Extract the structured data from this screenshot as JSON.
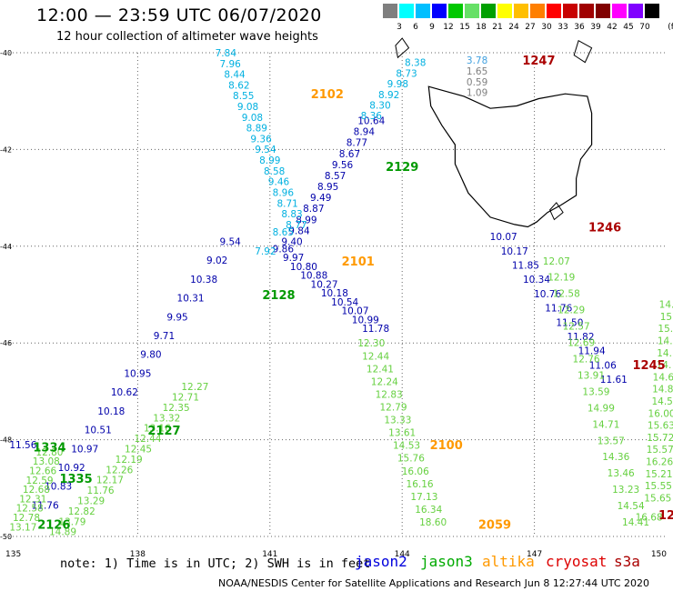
{
  "header": {
    "title": "12:00 — 23:59 UTC 06/07/2020",
    "subtitle": "12 hour collection of altimeter wave heights"
  },
  "legend": {
    "unit_label": "(ft)",
    "colors": [
      "#7f7f7f",
      "#00ffff",
      "#00bfff",
      "#0000ff",
      "#00c800",
      "#66e066",
      "#00a000",
      "#ffff00",
      "#ffbf00",
      "#ff7f00",
      "#ff0000",
      "#c80000",
      "#a00000",
      "#800000",
      "#ff00ff",
      "#8000ff",
      "#000000"
    ],
    "ticks": [
      "3",
      "6",
      "9",
      "12",
      "15",
      "18",
      "21",
      "24",
      "27",
      "30",
      "33",
      "36",
      "39",
      "42",
      "45",
      "70"
    ]
  },
  "map": {
    "lat_labels": [
      "-40",
      "-42",
      "-44",
      "-46",
      "-48",
      "-50"
    ],
    "lon_labels": [
      "135",
      "138",
      "141",
      "144",
      "147",
      "150"
    ],
    "lat_range": [
      -50,
      -40
    ],
    "lon_range": [
      135,
      150
    ]
  },
  "tracks": [
    {
      "id": "j2-a",
      "color": "#0000aa",
      "lon0": 140.1,
      "lat0": -43.9,
      "lon1": 135.9,
      "lat1": -49.35,
      "values": [
        "9.54",
        "9.02",
        "10.38",
        "10.31",
        "9.95",
        "9.71",
        "9.80",
        "10.95",
        "10.62",
        "10.18",
        "10.51",
        "10.97",
        "10.92",
        "10.83",
        "11.76"
      ]
    },
    {
      "id": "j2-b",
      "color": "#0000aa",
      "lon0": 141.3,
      "lat0": -44.05,
      "lon1": 143.4,
      "lat1": -45.7,
      "values": [
        "9.86",
        "9.97",
        "10.80",
        "10.88",
        "10.27",
        "10.18",
        "10.54",
        "10.07",
        "10.99",
        "11.78"
      ]
    },
    {
      "id": "j2-c",
      "color": "#0000aa",
      "lon0": 143.3,
      "lat0": -41.4,
      "lon1": 141.5,
      "lat1": -43.9,
      "values": [
        "10.64",
        "8.94",
        "8.77",
        "8.67",
        "9.56",
        "8.57",
        "8.95",
        "9.49",
        "8.87",
        "8.99",
        "9.84",
        "9.40"
      ]
    },
    {
      "id": "j2-d",
      "color": "#0000aa",
      "lon0": 146.3,
      "lat0": -43.8,
      "lon1": 148.8,
      "lat1": -46.75,
      "values": [
        "10.07",
        "10.17",
        "11.85",
        "10.34",
        "10.76",
        "11.76",
        "11.50",
        "11.82",
        "11.94",
        "11.06",
        "11.61"
      ]
    },
    {
      "id": "al-a",
      "color": "#00b0e0",
      "lon0": 140.0,
      "lat0": -40.0,
      "lon1": 141.6,
      "lat1": -43.55,
      "values": [
        "7.84",
        "7.96",
        "8.44",
        "8.62",
        "8.55",
        "9.08",
        "9.08",
        "8.89",
        "9.36",
        "9.54",
        "8.99",
        "8.58",
        "9.46",
        "8.96",
        "8.71",
        "8.83",
        "8.77"
      ]
    },
    {
      "id": "al-b",
      "color": "#00b0e0",
      "lon0": 144.3,
      "lat0": -40.2,
      "lon1": 143.3,
      "lat1": -41.3,
      "values": [
        "8.38",
        "8.73",
        "9.98",
        "8.92",
        "8.30",
        "8.36"
      ]
    },
    {
      "id": "al-c",
      "color": "#00b0e0",
      "lon0": 141.3,
      "lat0": -43.7,
      "lon1": 140.9,
      "lat1": -44.1,
      "values": [
        "8.65",
        "7.92"
      ]
    },
    {
      "id": "j3-a",
      "color": "#66d040",
      "lon0": 139.3,
      "lat0": -46.9,
      "lon1": 136.3,
      "lat1": -49.9,
      "values": [
        "12.27",
        "12.71",
        "12.35",
        "13.32",
        "13.16",
        "12.44",
        "12.45",
        "12.19",
        "12.26",
        "12.17",
        "11.76",
        "13.29",
        "12.82",
        "13.79",
        "14.89"
      ]
    },
    {
      "id": "j3-b",
      "color": "#66d040",
      "lon0": 143.3,
      "lat0": -46.0,
      "lon1": 144.7,
      "lat1": -49.7,
      "values": [
        "12.30",
        "12.44",
        "12.41",
        "12.24",
        "12.83",
        "12.79",
        "13.33",
        "13.61",
        "14.53",
        "15.76",
        "16.06",
        "16.16",
        "17.13",
        "16.34",
        "18.60"
      ]
    },
    {
      "id": "j3-c",
      "color": "#66d040",
      "lon0": 136.0,
      "lat0": -48.25,
      "lon1": 135.4,
      "lat1": -49.8,
      "values": [
        "12.80",
        "13.08",
        "12.66",
        "12.59",
        "12.68",
        "12.31",
        "12.58",
        "12.78",
        "13.17"
      ]
    },
    {
      "id": "j3-d",
      "color": "#66d040",
      "lon0": 147.5,
      "lat0": -44.3,
      "lon1": 149.3,
      "lat1": -49.7,
      "values": [
        "12.07",
        "12.19",
        "12.58",
        "12.29",
        "12.57",
        "12.69",
        "12.76",
        "13.91",
        "13.59",
        "14.99",
        "14.71",
        "13.57",
        "14.36",
        "13.46",
        "13.23",
        "14.54",
        "14.41"
      ]
    },
    {
      "id": "j3-e",
      "color": "#66d040",
      "lon0": 150.0,
      "lat0": -45.2,
      "lon1": 149.8,
      "lat1": -49.2,
      "values": [
        "14.",
        "15",
        "15.",
        "14.",
        "14.",
        "14.",
        "14.6",
        "14.8",
        "14.5",
        "16.00",
        "15.63",
        "15.72",
        "15.57",
        "16.26",
        "15.21",
        "15.55",
        "15.65"
      ]
    }
  ],
  "north_values": [
    {
      "v": "3.78",
      "color": "#40a0e0",
      "lon": 145.7,
      "lat": -40.15
    },
    {
      "v": "1.65",
      "color": "#808080",
      "lon": 145.7,
      "lat": -40.38
    },
    {
      "v": "0.59",
      "color": "#808080",
      "lon": 145.7,
      "lat": -40.6
    },
    {
      "v": "1.09",
      "color": "#808080",
      "lon": 145.7,
      "lat": -40.82
    },
    {
      "v": "11.56",
      "color": "#0000aa",
      "lon": 135.4,
      "lat": -48.1
    },
    {
      "v": "16.68",
      "color": "#66d040",
      "lon": 149.6,
      "lat": -49.6
    }
  ],
  "passes": [
    {
      "t": "2102",
      "color": "#ff9900",
      "lon": 142.3,
      "lat": -40.85
    },
    {
      "t": "2129",
      "color": "#009900",
      "lon": 144.0,
      "lat": -42.35
    },
    {
      "t": "2101",
      "color": "#ff9900",
      "lon": 143.0,
      "lat": -44.3
    },
    {
      "t": "2128",
      "color": "#009900",
      "lon": 141.2,
      "lat": -45.0
    },
    {
      "t": "2127",
      "color": "#009900",
      "lon": 138.6,
      "lat": -47.8
    },
    {
      "t": "1334",
      "color": "#009900",
      "lon": 136.0,
      "lat": -48.15
    },
    {
      "t": "1335",
      "color": "#009900",
      "lon": 136.6,
      "lat": -48.8
    },
    {
      "t": "2126",
      "color": "#009900",
      "lon": 136.1,
      "lat": -49.75
    },
    {
      "t": "2100",
      "color": "#ff9900",
      "lon": 145.0,
      "lat": -48.1
    },
    {
      "t": "2059",
      "color": "#ff9900",
      "lon": 146.1,
      "lat": -49.75
    },
    {
      "t": "1247",
      "color": "#aa0000",
      "lon": 147.1,
      "lat": -40.15
    },
    {
      "t": "1246",
      "color": "#aa0000",
      "lon": 148.6,
      "lat": -43.6
    },
    {
      "t": "1245",
      "color": "#aa0000",
      "lon": 149.6,
      "lat": -46.45
    },
    {
      "t": "12",
      "color": "#aa0000",
      "lon": 150.0,
      "lat": -49.55
    }
  ],
  "footer": {
    "note": "note: 1) Time is in UTC; 2) SWH is in feet",
    "credit": "NOAA/NESDIS Center for Satellite Applications and Research   Jun  8 12:27:44 UTC 2020",
    "satellites": [
      {
        "name": "jason2",
        "color": "#0000dd"
      },
      {
        "name": "jason3",
        "color": "#00aa00"
      },
      {
        "name": "altika",
        "color": "#ff9900"
      },
      {
        "name": "cryosat",
        "color": "#dd0000"
      },
      {
        "name": "s3a",
        "color": "#aa0000"
      }
    ]
  }
}
